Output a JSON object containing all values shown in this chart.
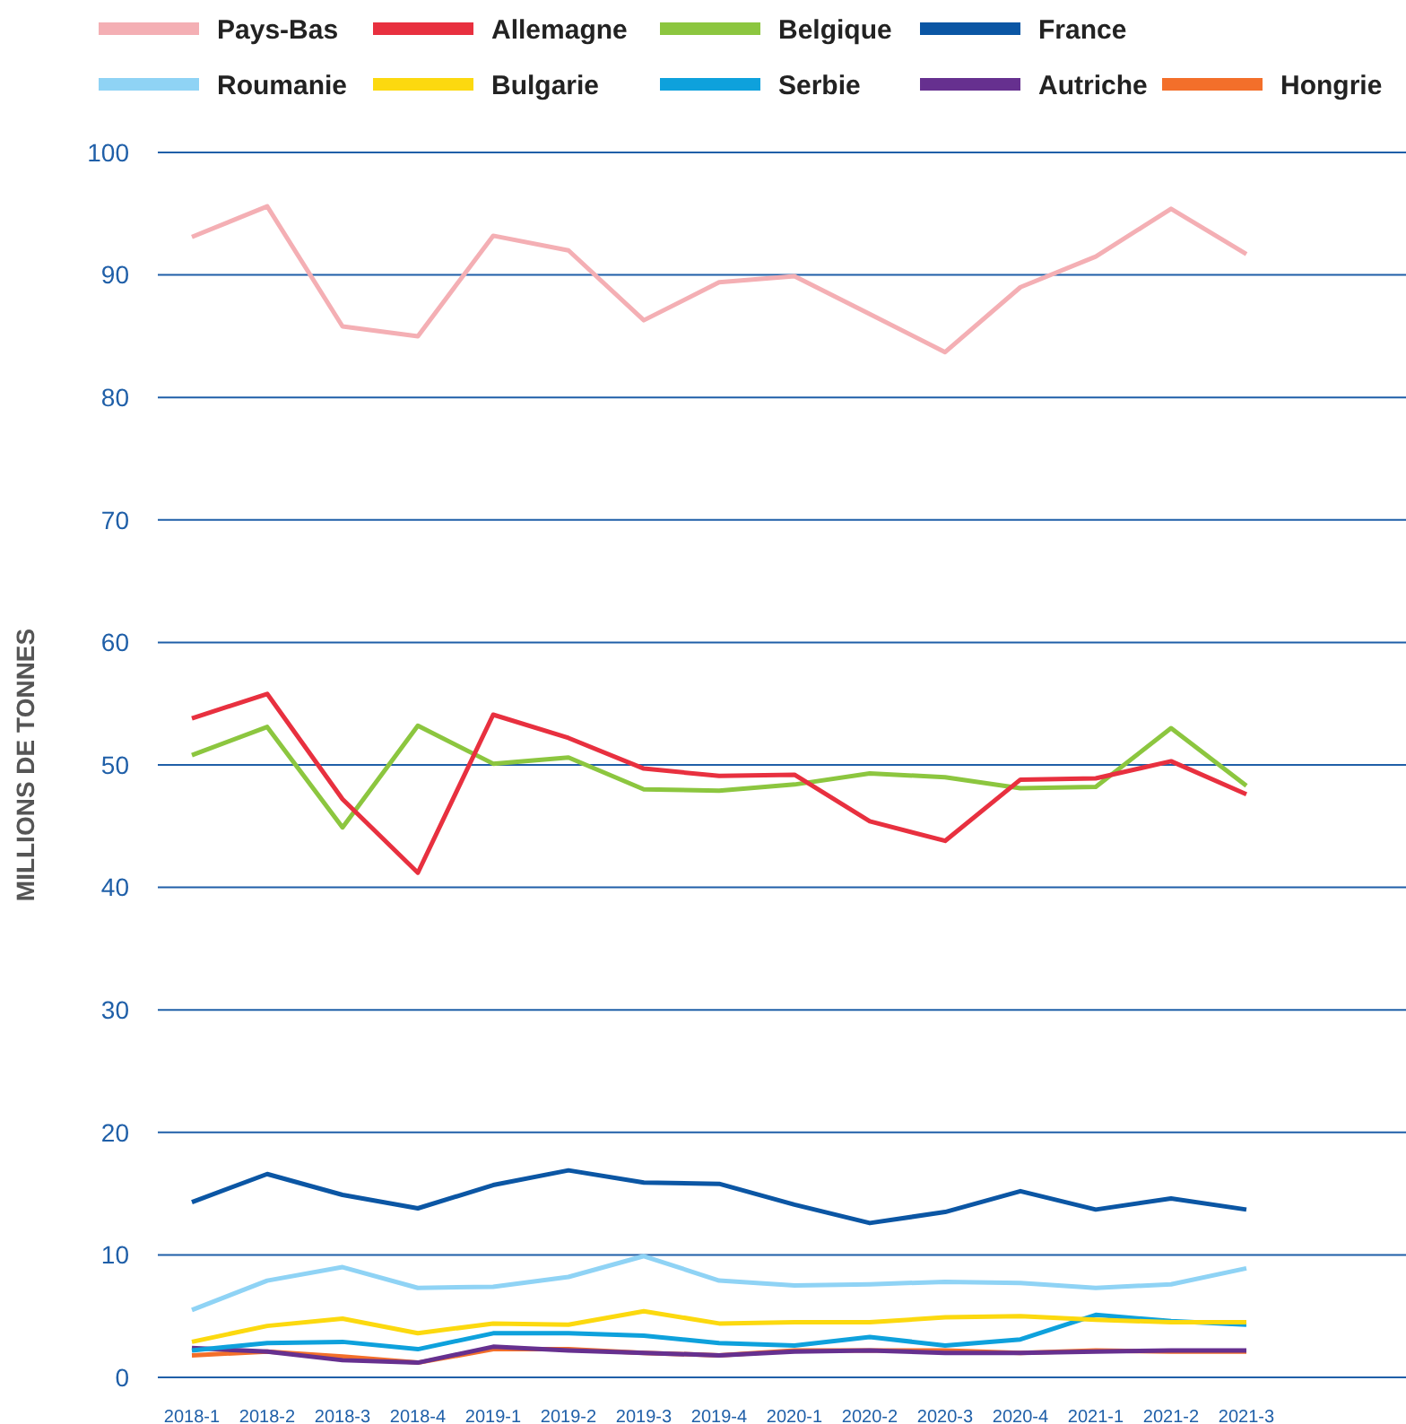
{
  "chart_data": {
    "type": "line",
    "ylabel": "MILLIONS DE TONNES",
    "categories": [
      "2018-1",
      "2018-2",
      "2018-3",
      "2018-4",
      "2019-1",
      "2019-2",
      "2019-3",
      "2019-4",
      "2020-1",
      "2020-2",
      "2020-3",
      "2020-4",
      "2021-1",
      "2021-2",
      "2021-3"
    ],
    "ylim": [
      0,
      100
    ],
    "yticks": [
      0,
      10,
      20,
      30,
      40,
      50,
      60,
      70,
      80,
      90,
      100
    ],
    "grid": "y",
    "legend": "top",
    "marker": "none",
    "line_style": "solid",
    "series": [
      {
        "name": "Pays-Bas",
        "color": "#f4afb4",
        "values": [
          93.1,
          95.6,
          85.8,
          85.0,
          93.2,
          92.0,
          86.3,
          89.4,
          89.9,
          86.8,
          83.7,
          89.0,
          91.5,
          95.4,
          91.7
        ]
      },
      {
        "name": "Allemagne",
        "color": "#e8303f",
        "values": [
          53.8,
          55.8,
          47.2,
          41.2,
          54.1,
          52.2,
          49.7,
          49.1,
          49.2,
          45.4,
          43.8,
          48.8,
          48.9,
          50.3,
          47.6
        ]
      },
      {
        "name": "Belgique",
        "color": "#8cc63f",
        "values": [
          50.8,
          53.1,
          44.9,
          53.2,
          50.1,
          50.6,
          48.0,
          47.9,
          48.4,
          49.3,
          49.0,
          48.1,
          48.2,
          53.0,
          48.3
        ]
      },
      {
        "name": "France",
        "color": "#0b56a4",
        "values": [
          14.3,
          16.6,
          14.9,
          13.8,
          15.7,
          16.9,
          15.9,
          15.8,
          14.1,
          12.6,
          13.5,
          15.2,
          13.7,
          14.6,
          13.7
        ]
      },
      {
        "name": "Roumanie",
        "color": "#8fd3f5",
        "values": [
          5.5,
          7.9,
          9.0,
          7.3,
          7.4,
          8.2,
          9.9,
          7.9,
          7.5,
          7.6,
          7.8,
          7.7,
          7.3,
          7.6,
          8.9
        ]
      },
      {
        "name": "Bulgarie",
        "color": "#fcd90f",
        "values": [
          2.9,
          4.2,
          4.8,
          3.6,
          4.4,
          4.3,
          5.4,
          4.4,
          4.5,
          4.5,
          4.9,
          5.0,
          4.7,
          4.5,
          4.5
        ]
      },
      {
        "name": "Serbie",
        "color": "#0ea1dc",
        "values": [
          2.2,
          2.8,
          2.9,
          2.3,
          3.6,
          3.6,
          3.4,
          2.8,
          2.6,
          3.3,
          2.6,
          3.1,
          5.1,
          4.6,
          4.3
        ]
      },
      {
        "name": "Autriche",
        "color": "#66308f",
        "values": [
          2.4,
          2.1,
          1.4,
          1.2,
          2.5,
          2.2,
          2.0,
          1.8,
          2.1,
          2.2,
          2.0,
          2.0,
          2.1,
          2.2,
          2.2
        ]
      },
      {
        "name": "Hongrie",
        "color": "#f36f2a",
        "values": [
          1.8,
          2.1,
          1.7,
          1.2,
          2.3,
          2.3,
          2.0,
          1.8,
          2.2,
          2.2,
          2.2,
          2.0,
          2.2,
          2.1,
          2.1
        ]
      }
    ]
  }
}
